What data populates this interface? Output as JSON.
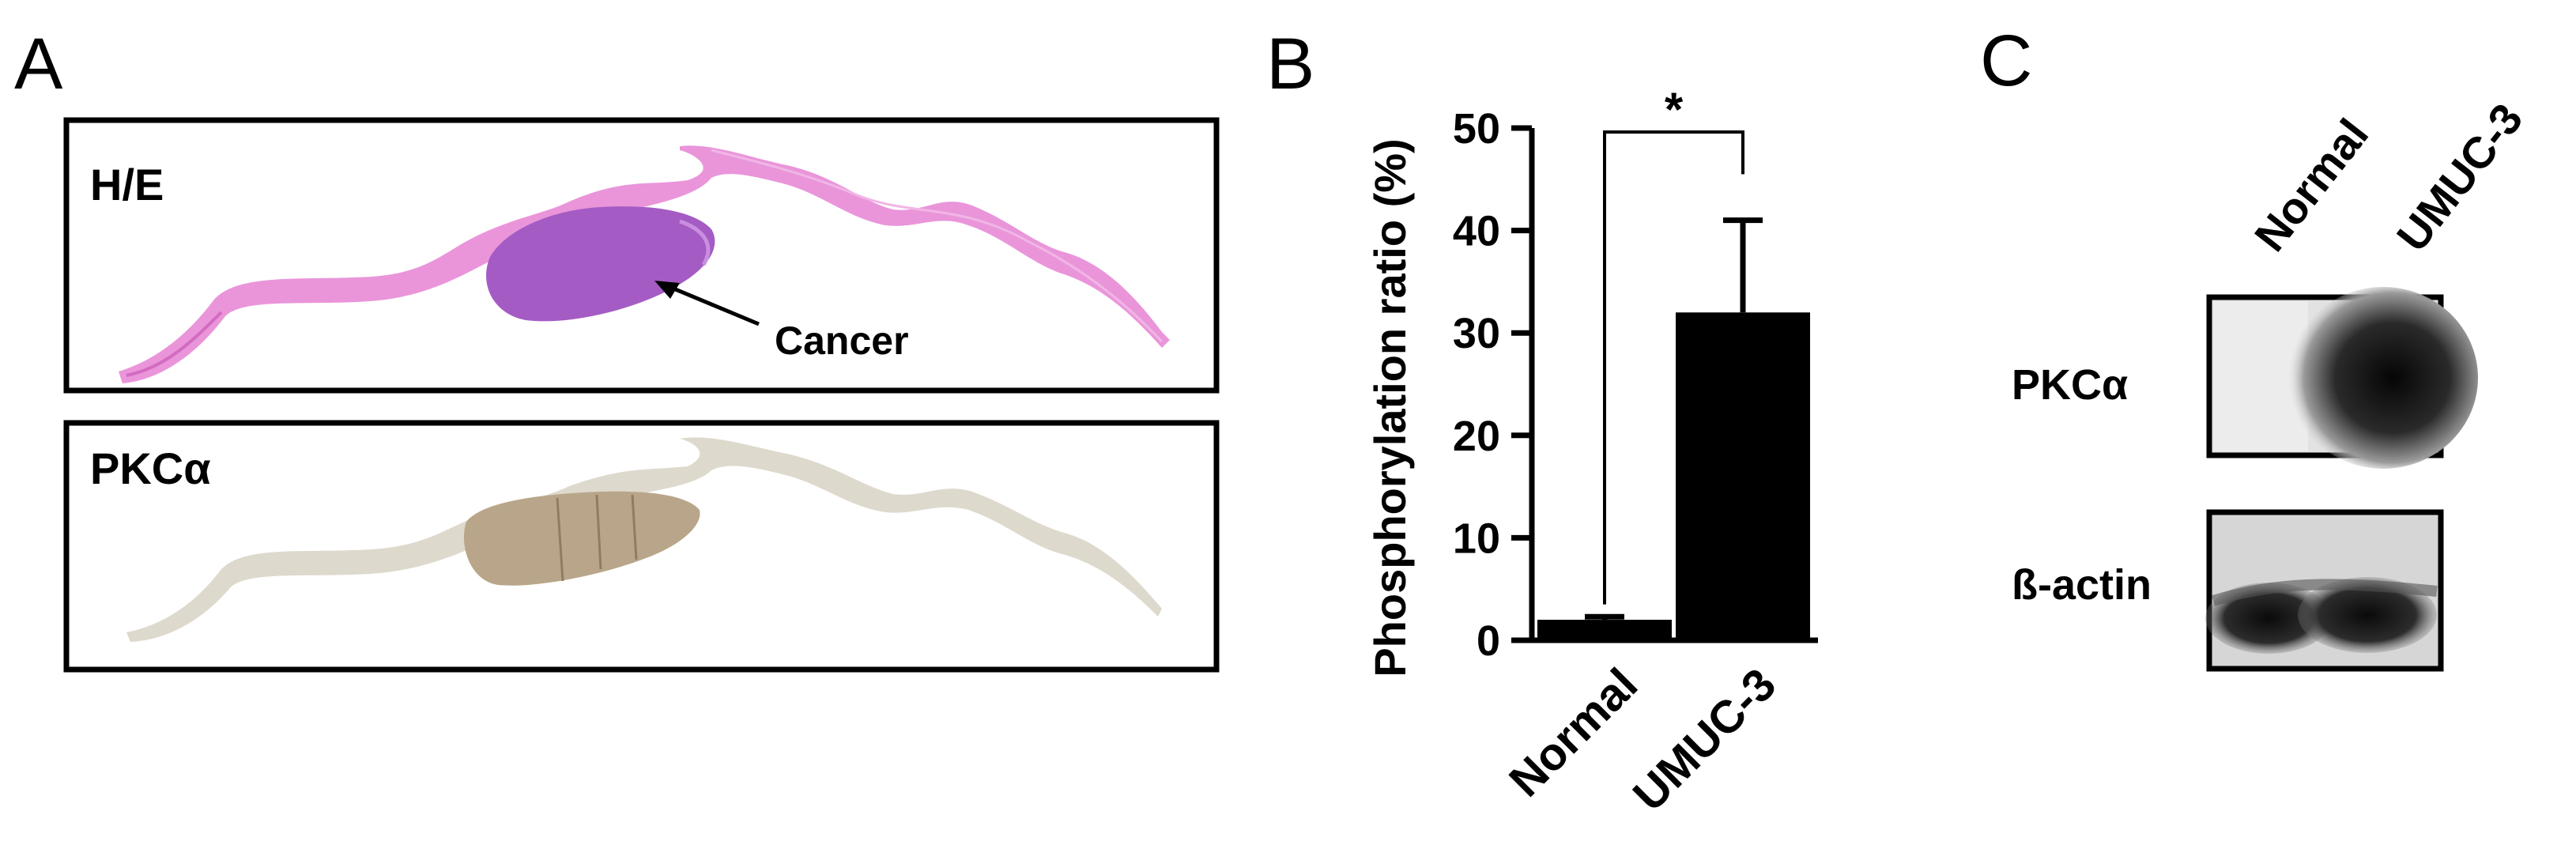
{
  "panel_a": {
    "letter": "A",
    "he_label": "H/E",
    "pkc_label": "PKCα",
    "cancer_label": "Cancer"
  },
  "panel_b": {
    "letter": "B"
  },
  "panel_c": {
    "letter": "C",
    "lanes": [
      "Normal",
      "UMUC-3"
    ],
    "pkc_label": "PKCα",
    "actin_label": "ß-actin"
  },
  "colors": {
    "he_stroma": "#e88ad6",
    "he_tumor": "#a45cc4",
    "ihc_tissue": "#d8d2c4",
    "ihc_tumor": "#b9a68a",
    "bar": "#000000"
  },
  "chart_data": {
    "type": "bar",
    "title": "",
    "xlabel": "",
    "ylabel": "Phosphorylation ratio (%)",
    "categories": [
      "Normal",
      "UMUC-3"
    ],
    "values": [
      2,
      32
    ],
    "error_upper": [
      0.3,
      9
    ],
    "ylim": [
      0,
      50
    ],
    "yticks": [
      0,
      10,
      20,
      30,
      40,
      50
    ],
    "significance": {
      "between": [
        0,
        1
      ],
      "label": "*"
    }
  }
}
